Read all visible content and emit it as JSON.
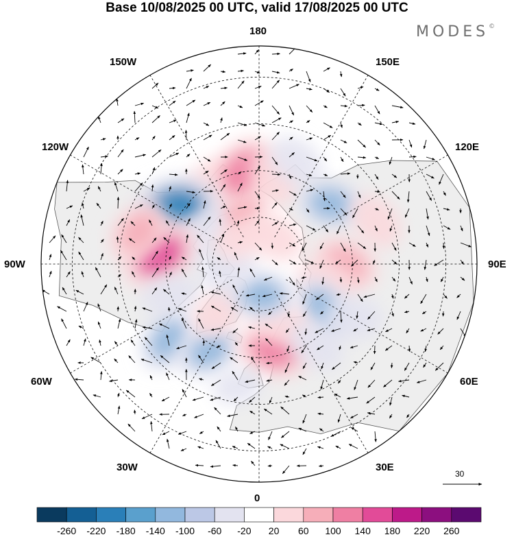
{
  "title": "Base 10/08/2025 00 UTC, valid 17/08/2025 00 UTC",
  "brand": {
    "name": "MODES",
    "mark": "©"
  },
  "longitude_labels": {
    "top": "180",
    "bottom": "0",
    "left": "90W",
    "right": "90E",
    "upper_left_1": "150W",
    "upper_left_2": "120W",
    "upper_right_1": "150E",
    "upper_right_2": "120E",
    "lower_left_1": "60W",
    "lower_left_2": "30W",
    "lower_right_1": "60E",
    "lower_right_2": "30E"
  },
  "vector_scale": {
    "value": "30"
  },
  "colorbar": {
    "ticks": [
      "-260",
      "-220",
      "-180",
      "-140",
      "-100",
      "-60",
      "-20",
      "20",
      "60",
      "100",
      "140",
      "180",
      "220",
      "260"
    ],
    "colors": [
      "#0a3a5e",
      "#145f94",
      "#2a7fb8",
      "#5aa0cd",
      "#92b8de",
      "#bcc8e6",
      "#e3e3f0",
      "#ffffff",
      "#fbd8dc",
      "#f6aeb9",
      "#ef7fa3",
      "#e24b98",
      "#bd1a89",
      "#8c0f7f",
      "#5b0a70"
    ]
  },
  "anomalies": [
    {
      "lon": -150,
      "lat": 60,
      "value": 60
    },
    {
      "lon": -160,
      "lat": 72,
      "value": 100
    },
    {
      "lon": -170,
      "lat": 60,
      "value": 140
    },
    {
      "lon": 170,
      "lat": 62,
      "value": 60
    },
    {
      "lon": 160,
      "lat": 55,
      "value": -60
    },
    {
      "lon": -125,
      "lat": 58,
      "value": -180
    },
    {
      "lon": -115,
      "lat": 70,
      "value": -60
    },
    {
      "lon": 130,
      "lat": 60,
      "value": -100
    },
    {
      "lon": 110,
      "lat": 50,
      "value": 60
    },
    {
      "lon": -95,
      "lat": 58,
      "value": 160
    },
    {
      "lon": -105,
      "lat": 50,
      "value": 100
    },
    {
      "lon": -70,
      "lat": 60,
      "value": -60
    },
    {
      "lon": -50,
      "lat": 52,
      "value": -100
    },
    {
      "lon": -30,
      "lat": 58,
      "value": -100
    },
    {
      "lon": -40,
      "lat": 70,
      "value": 60
    },
    {
      "lon": 90,
      "lat": 62,
      "value": 100
    },
    {
      "lon": 75,
      "lat": 68,
      "value": 60
    },
    {
      "lon": 55,
      "lat": 65,
      "value": -100
    },
    {
      "lon": 60,
      "lat": 55,
      "value": -60
    },
    {
      "lon": 10,
      "lat": 62,
      "value": 140
    },
    {
      "lon": 20,
      "lat": 70,
      "value": 60
    },
    {
      "lon": 35,
      "lat": 58,
      "value": -60
    },
    {
      "lon": 5,
      "lat": 80,
      "value": -100
    },
    {
      "lon": -10,
      "lat": 50,
      "value": -20
    },
    {
      "lon": -80,
      "lat": 80,
      "value": -60
    },
    {
      "lon": 150,
      "lat": 80,
      "value": 60
    },
    {
      "lon": -140,
      "lat": 80,
      "value": 20
    }
  ],
  "colors": {
    "land": "#eeeeee",
    "ocean": "#ffffff",
    "coast": "#555555",
    "grid": "#000000"
  }
}
